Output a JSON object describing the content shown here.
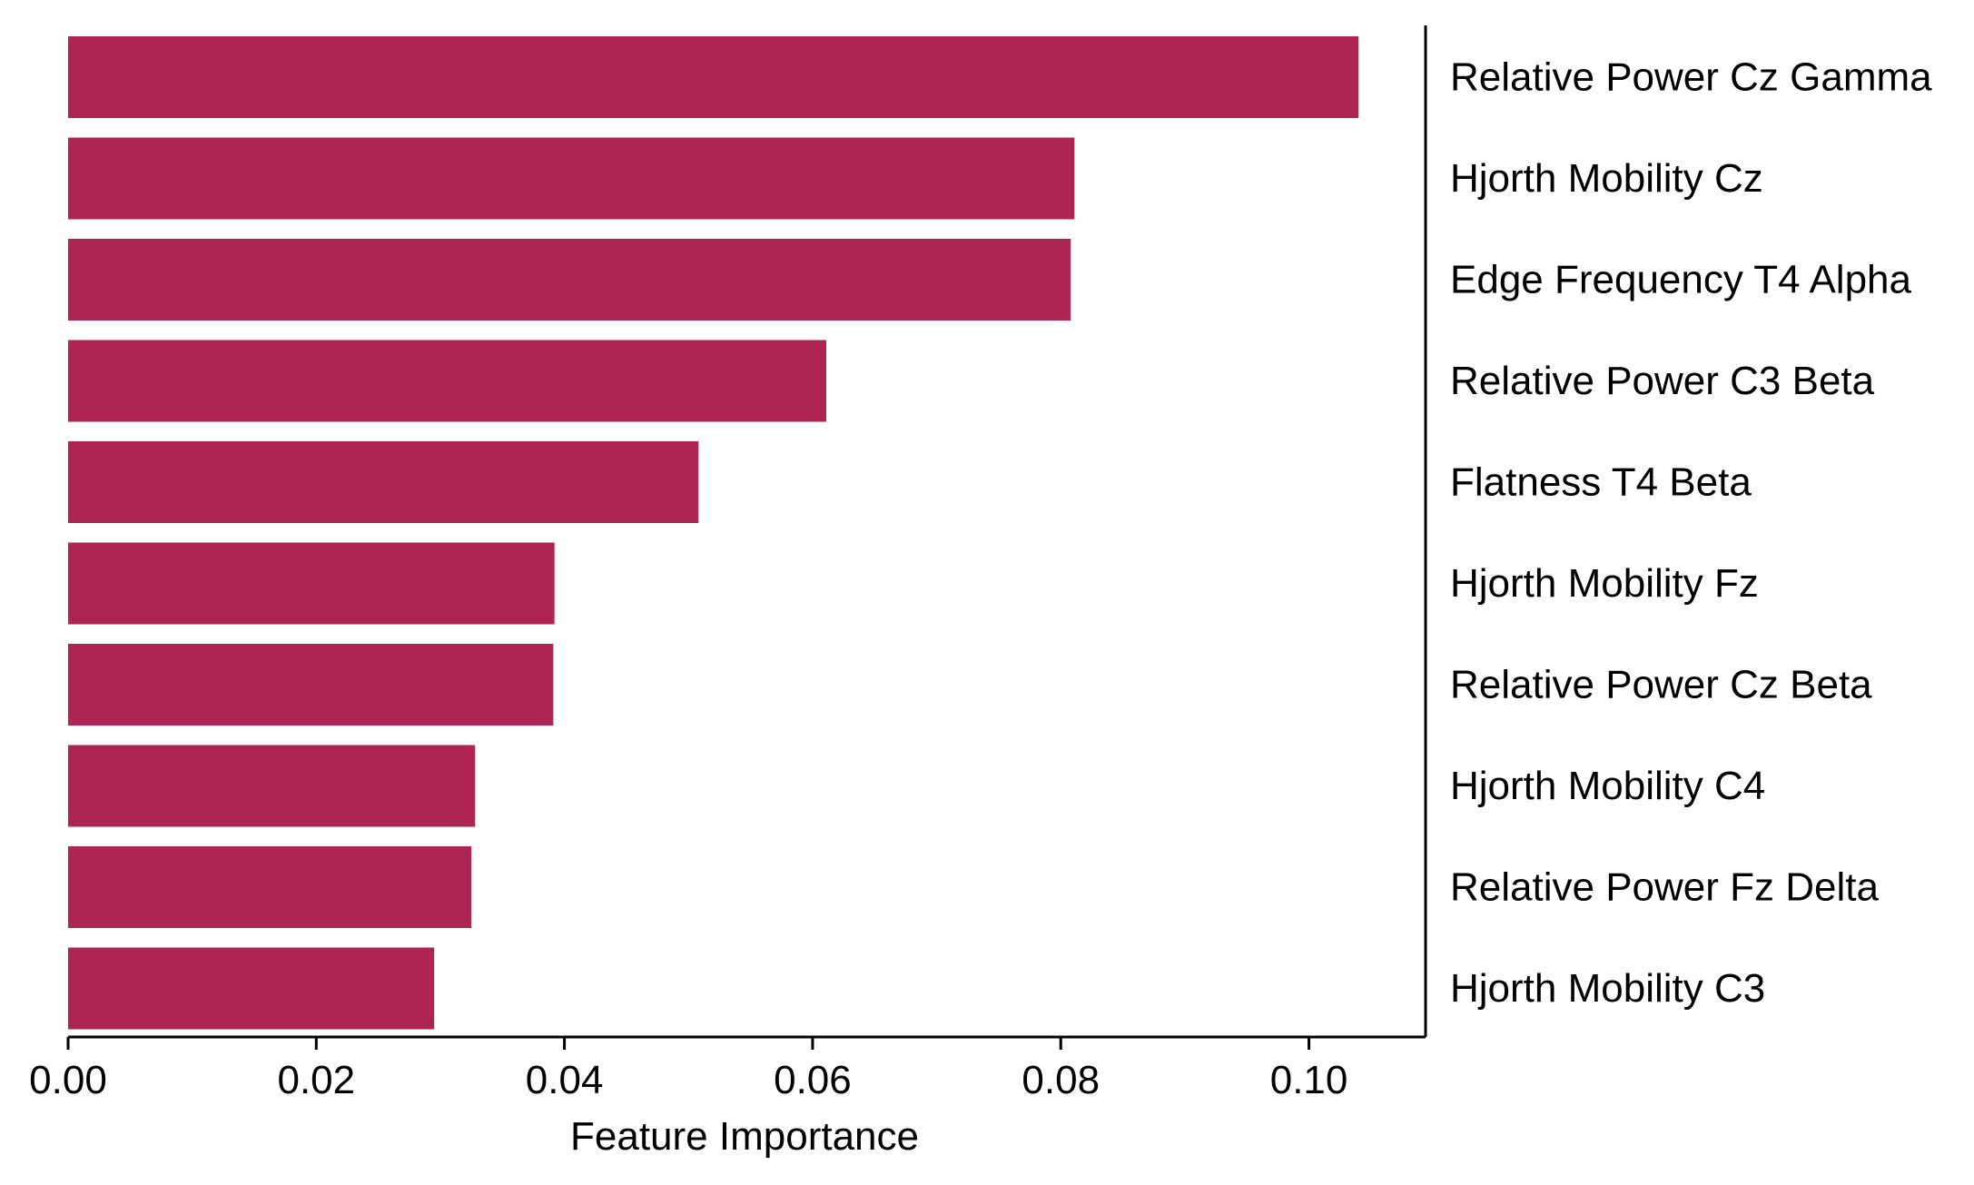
{
  "chart_data": {
    "type": "bar",
    "orientation": "horizontal",
    "categories": [
      "Relative Power Cz Gamma",
      "Hjorth Mobility Cz",
      "Edge Frequency T4 Alpha",
      "Relative Power C3 Beta",
      "Flatness T4 Beta",
      "Hjorth Mobility Fz",
      "Relative Power Cz Beta",
      "Hjorth Mobility C4",
      "Relative Power Fz Delta",
      "Hjorth Mobility C3"
    ],
    "values": [
      0.104,
      0.0811,
      0.0808,
      0.0611,
      0.0508,
      0.0392,
      0.0391,
      0.0328,
      0.0325,
      0.0295
    ],
    "xlabel": "Feature Importance",
    "ylabel": "",
    "xlim": [
      0,
      0.1094
    ],
    "xticks": [
      "0.00",
      "0.02",
      "0.04",
      "0.06",
      "0.08",
      "0.10"
    ],
    "category_axis_side": "right",
    "grid": false,
    "bar_color": "#ae2452"
  }
}
